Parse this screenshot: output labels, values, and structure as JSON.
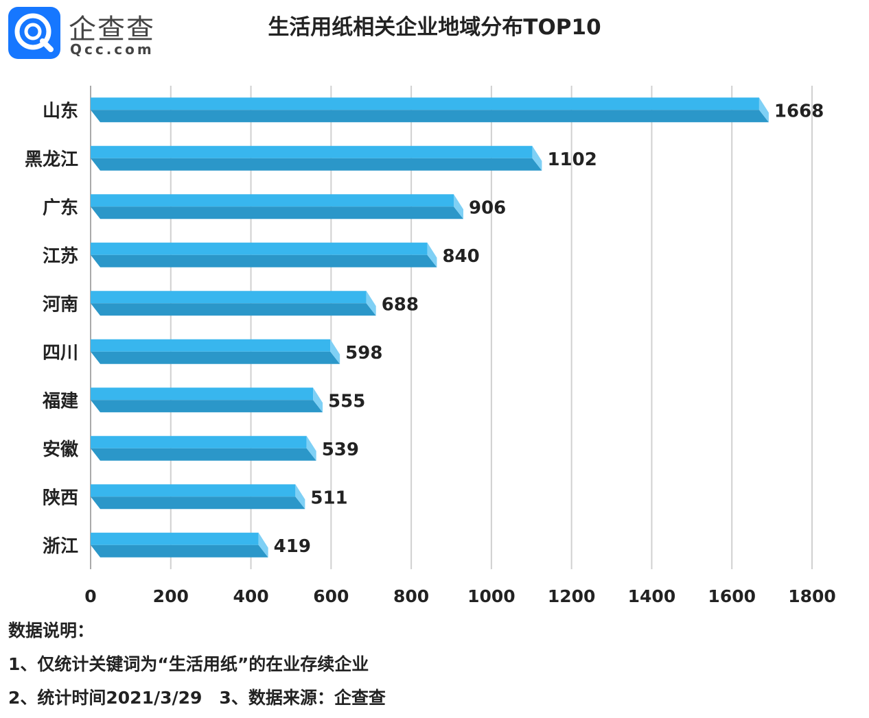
{
  "logo": {
    "name_cn": "企查查",
    "domain": "Qcc.com"
  },
  "title": "生活用纸相关企业地域分布TOP10",
  "colors": {
    "bar_top": "#38b6ee",
    "bar_front": "#2b97c9",
    "bar_side": "#7fd0f5",
    "grid": "#d0d0d0",
    "axis": "#aaaaaa"
  },
  "chart_data": {
    "type": "bar",
    "orientation": "horizontal",
    "title": "生活用纸相关企业地域分布TOP10",
    "categories": [
      "山东",
      "黑龙江",
      "广东",
      "江苏",
      "河南",
      "四川",
      "福建",
      "安徽",
      "陕西",
      "浙江"
    ],
    "values": [
      1668,
      1102,
      906,
      840,
      688,
      598,
      555,
      539,
      511,
      419
    ],
    "xlim": [
      0,
      1800
    ],
    "xticks": [
      0,
      200,
      400,
      600,
      800,
      1000,
      1200,
      1400,
      1600,
      1800
    ],
    "grid": true,
    "data_labels": true
  },
  "notes": {
    "heading": "数据说明：",
    "line1": "1、仅统计关键词为“生活用纸”的在业存续企业",
    "line2": "2、统计时间2021/3/29　3、数据来源：企查查"
  }
}
